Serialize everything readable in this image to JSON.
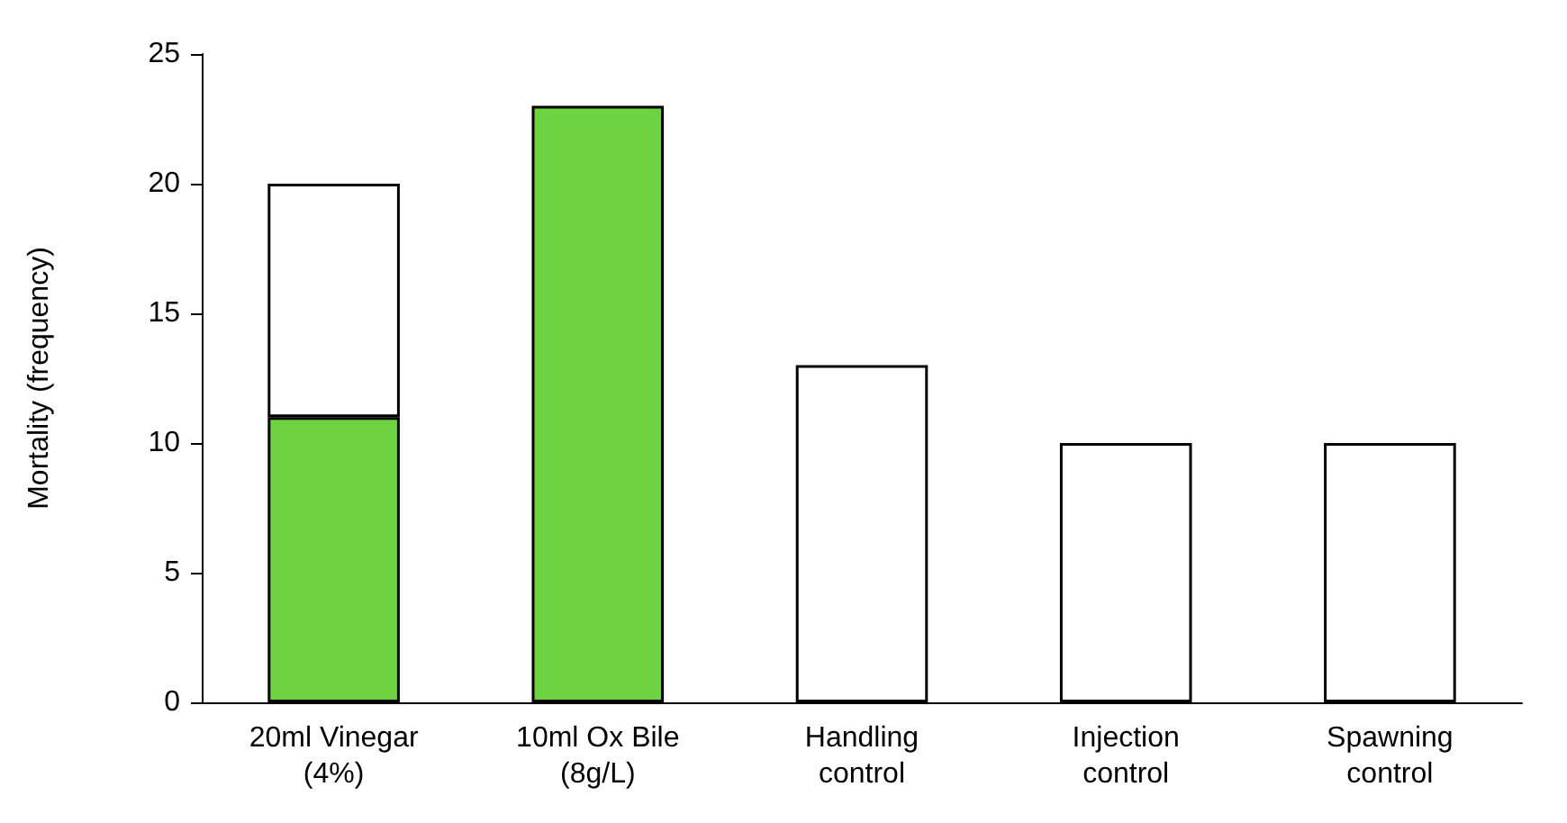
{
  "chart_data": {
    "type": "bar",
    "ylabel": "Mortality (frequency)",
    "categories": [
      "20ml Vinegar\n(4%)",
      "10ml Ox Bile\n(8g/L)",
      "Handling\ncontrol",
      "Injection\ncontrol",
      "Spawning\ncontrol"
    ],
    "series": [
      {
        "color": "#6dd341",
        "values": [
          11,
          23,
          null,
          null,
          null
        ]
      },
      {
        "color": "#ffffff",
        "values": [
          9,
          null,
          13,
          10,
          10
        ]
      }
    ],
    "stacked": true,
    "ylim": [
      0,
      25
    ],
    "yticks": [
      0,
      5,
      10,
      15,
      20,
      25
    ],
    "grid": false
  }
}
